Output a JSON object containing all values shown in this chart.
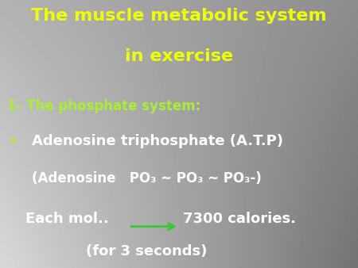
{
  "title_line1": "The muscle metabolic system",
  "title_line2": "in exercise",
  "title_color": "#EEFF00",
  "subtitle": "1- The phosphate system:",
  "subtitle_color": "#AAEE33",
  "bullet_line1": "Adenosine triphosphate (A.T.P)",
  "bullet_line2": "(Adenosine   PO₃ ~ PO₃ ~ PO₃-)",
  "bullet_color": "#FFFFFF",
  "line3a": "Each mol.. ",
  "line3b": "7300 calories.",
  "line4": "(for 3 seconds)",
  "arrow_color": "#33CC33",
  "bullet_marker": "▸",
  "bullet_marker_color": "#AAEE33",
  "title_fontsize": 16,
  "subtitle_fontsize": 12,
  "body_fontsize": 13,
  "po3_fontsize": 12
}
